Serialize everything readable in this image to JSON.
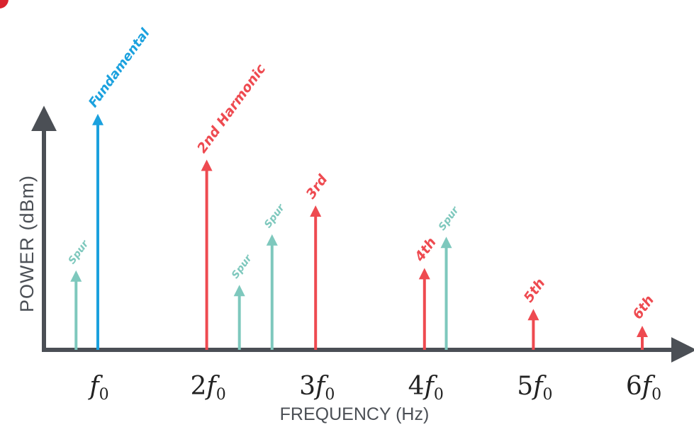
{
  "title": "",
  "axes": {
    "x_label": "FREQUENCY (Hz)",
    "y_label": "POWER (dBm)"
  },
  "x_ticks": [
    {
      "coef": "",
      "sym": "f",
      "sub": "0",
      "value": 1
    },
    {
      "coef": "2",
      "sym": "f",
      "sub": "0",
      "value": 2
    },
    {
      "coef": "3",
      "sym": "f",
      "sub": "0",
      "value": 3
    },
    {
      "coef": "4",
      "sym": "f",
      "sub": "0",
      "value": 4
    },
    {
      "coef": "5",
      "sym": "f",
      "sub": "0",
      "value": 5
    },
    {
      "coef": "6",
      "sym": "f",
      "sub": "0",
      "value": 6
    }
  ],
  "colors": {
    "axis": "#4b4f55",
    "fundamental": "#1ba1de",
    "harmonic": "#ee4a50",
    "spur": "#7ec8bd",
    "corner_mark": "#d9232e"
  },
  "chart_data": {
    "type": "spectrum",
    "x_unit": "f0 multiple",
    "y_unit": "relative power (0–1)",
    "lines": [
      {
        "kind": "spur",
        "label": "Spur",
        "x": 0.8,
        "power": 0.33
      },
      {
        "kind": "fundamental",
        "label": "Fundamental",
        "x": 1.0,
        "power": 0.98
      },
      {
        "kind": "harmonic",
        "label": "2nd Harmonic",
        "x": 2.0,
        "power": 0.79
      },
      {
        "kind": "spur",
        "label": "Spur",
        "x": 2.3,
        "power": 0.27
      },
      {
        "kind": "spur",
        "label": "Spur",
        "x": 2.6,
        "power": 0.48
      },
      {
        "kind": "harmonic",
        "label": "3rd",
        "x": 3.0,
        "power": 0.6
      },
      {
        "kind": "harmonic",
        "label": "4th",
        "x": 4.0,
        "power": 0.34
      },
      {
        "kind": "spur",
        "label": "Spur",
        "x": 4.2,
        "power": 0.47
      },
      {
        "kind": "harmonic",
        "label": "5th",
        "x": 5.0,
        "power": 0.17
      },
      {
        "kind": "harmonic",
        "label": "6th",
        "x": 6.0,
        "power": 0.1
      }
    ]
  }
}
